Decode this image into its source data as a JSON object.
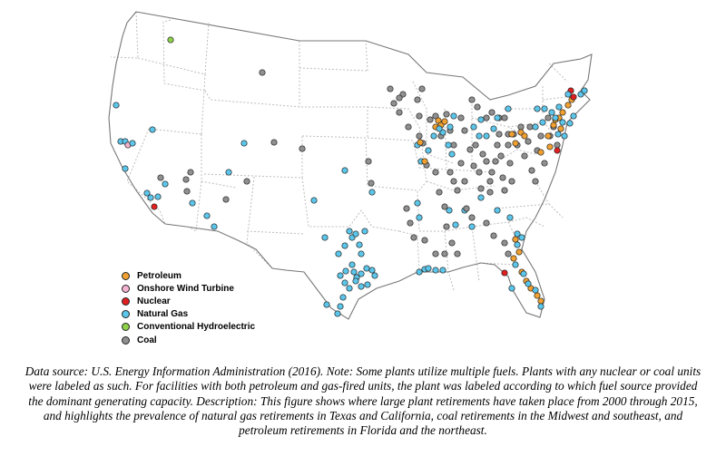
{
  "legend": {
    "items": [
      {
        "label": "Petroleum",
        "color": "#f0a030"
      },
      {
        "label": "Onshore Wind Turbine",
        "color": "#f4b3d0"
      },
      {
        "label": "Nuclear",
        "color": "#e02020"
      },
      {
        "label": "Natural Gas",
        "color": "#5cc6ea"
      },
      {
        "label": "Conventional Hydroelectric",
        "color": "#8ed14a"
      },
      {
        "label": "Coal",
        "color": "#909090"
      }
    ]
  },
  "caption": {
    "text": "Data source: U.S. Energy Information Administration (2016). Note: Some plants utilize multiple fuels. Plants with any nuclear or coal units were labeled as such. For facilities with both petroleum and gas-fired units, the plant was labeled according to which fuel source provided the dominant generating capacity. Description: This figure shows where large plant retirements have taken place from 2000 through 2015, and highlights the prevalence of natural gas retirements in Texas and California, coal retirements in the Midwest and southeast, and petroleum retirements in Florida and the northeast."
  }
}
